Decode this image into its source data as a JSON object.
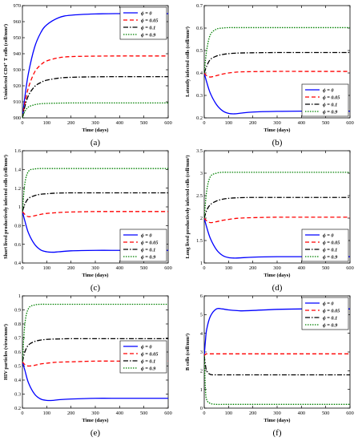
{
  "figure": {
    "style": {
      "series_colors": [
        "#0000ff",
        "#ff0000",
        "#000000",
        "#008000"
      ],
      "series_dash": [
        "solid",
        "dashed",
        "dashdot",
        "dotted"
      ]
    }
  },
  "chart_data": [
    {
      "panel": "(a)",
      "type": "line",
      "ylabel": "Uninfected CD4⁺ T cells (cell/mm³)",
      "xlabel": "Time (days)",
      "xlim": [
        0,
        600
      ],
      "ylim": [
        900,
        970
      ],
      "xticks": [
        0,
        100,
        200,
        300,
        400,
        500,
        600
      ],
      "yticks": [
        900,
        910,
        920,
        930,
        940,
        950,
        960,
        970
      ],
      "legend": "top-right",
      "x": [
        0,
        10,
        25,
        50,
        75,
        100,
        150,
        200,
        300,
        400,
        500,
        600
      ],
      "series": [
        {
          "name": "ϕ = 0",
          "values": [
            900,
            913,
            928,
            944,
            953,
            958,
            962.5,
            964,
            964.8,
            965,
            965,
            965
          ]
        },
        {
          "name": "ϕ = 0.05",
          "values": [
            900,
            909,
            919,
            928.5,
            933,
            935.5,
            937.5,
            938.2,
            938.5,
            938.6,
            938.6,
            938.6
          ]
        },
        {
          "name": "ϕ = 0.1",
          "values": [
            900,
            907,
            914,
            919.5,
            922,
            923.5,
            924.8,
            925.3,
            925.6,
            925.7,
            925.7,
            925.7
          ]
        },
        {
          "name": "ϕ = 0.9",
          "values": [
            900,
            904,
            906.8,
            908.2,
            908.8,
            909,
            909.2,
            909.3,
            909.3,
            909.3,
            909.3,
            909.3
          ]
        }
      ]
    },
    {
      "panel": "(b)",
      "type": "line",
      "ylabel": "Latently infected cells (cell/mm³)",
      "xlabel": "Time (days)",
      "xlim": [
        0,
        600
      ],
      "ylim": [
        0.2,
        0.7
      ],
      "xticks": [
        0,
        100,
        200,
        300,
        400,
        500,
        600
      ],
      "yticks": [
        0.2,
        0.3,
        0.4,
        0.5,
        0.6,
        0.7
      ],
      "legend": "bottom-right",
      "x": [
        0,
        10,
        25,
        50,
        75,
        100,
        125,
        150,
        200,
        300,
        400,
        500,
        600
      ],
      "series": [
        {
          "name": "ϕ = 0",
          "values": [
            0.4,
            0.36,
            0.31,
            0.26,
            0.232,
            0.22,
            0.218,
            0.221,
            0.226,
            0.229,
            0.23,
            0.23,
            0.23
          ]
        },
        {
          "name": "ϕ = 0.05",
          "values": [
            0.4,
            0.388,
            0.382,
            0.388,
            0.395,
            0.4,
            0.403,
            0.405,
            0.406,
            0.407,
            0.407,
            0.407,
            0.407
          ]
        },
        {
          "name": "ϕ = 0.1",
          "values": [
            0.4,
            0.43,
            0.46,
            0.475,
            0.482,
            0.486,
            0.488,
            0.489,
            0.49,
            0.491,
            0.491,
            0.491,
            0.491
          ]
        },
        {
          "name": "ϕ = 0.9",
          "values": [
            0.4,
            0.5,
            0.57,
            0.595,
            0.6,
            0.602,
            0.602,
            0.602,
            0.602,
            0.602,
            0.602,
            0.602,
            0.602
          ]
        }
      ]
    },
    {
      "panel": "(c)",
      "type": "line",
      "ylabel": "Short lived productively infected cells (cell/mm³)",
      "xlabel": "Time (days)",
      "xlim": [
        0,
        600
      ],
      "ylim": [
        0.4,
        1.6
      ],
      "xticks": [
        0,
        100,
        200,
        300,
        400,
        500,
        600
      ],
      "yticks": [
        0.4,
        0.6,
        0.8,
        1,
        1.2,
        1.4,
        1.6
      ],
      "legend": "bottom-right",
      "x": [
        0,
        10,
        25,
        50,
        75,
        100,
        125,
        150,
        200,
        300,
        400,
        500,
        600
      ],
      "series": [
        {
          "name": "ϕ = 0",
          "values": [
            0.95,
            0.85,
            0.72,
            0.6,
            0.54,
            0.52,
            0.515,
            0.52,
            0.53,
            0.535,
            0.535,
            0.535,
            0.535
          ]
        },
        {
          "name": "ϕ = 0.05",
          "values": [
            0.95,
            0.92,
            0.895,
            0.905,
            0.92,
            0.93,
            0.935,
            0.94,
            0.945,
            0.95,
            0.95,
            0.95,
            0.95
          ]
        },
        {
          "name": "ϕ = 0.1",
          "values": [
            0.95,
            1.03,
            1.09,
            1.12,
            1.135,
            1.14,
            1.145,
            1.148,
            1.15,
            1.15,
            1.15,
            1.15,
            1.15
          ]
        },
        {
          "name": "ϕ = 0.9",
          "values": [
            0.95,
            1.25,
            1.38,
            1.405,
            1.41,
            1.41,
            1.41,
            1.41,
            1.41,
            1.41,
            1.41,
            1.41,
            1.41
          ]
        }
      ]
    },
    {
      "panel": "(d)",
      "type": "line",
      "ylabel": "Long lived productively infected cells (cell/mm³)",
      "xlabel": "Time (days)",
      "xlim": [
        0,
        600
      ],
      "ylim": [
        1,
        3.5
      ],
      "xticks": [
        0,
        100,
        200,
        300,
        400,
        500,
        600
      ],
      "yticks": [
        1,
        1.5,
        2,
        2.5,
        3,
        3.5
      ],
      "legend": "bottom-right",
      "x": [
        0,
        10,
        25,
        50,
        75,
        100,
        125,
        150,
        200,
        300,
        400,
        500,
        600
      ],
      "series": [
        {
          "name": "ϕ = 0",
          "values": [
            2.0,
            1.8,
            1.55,
            1.3,
            1.17,
            1.12,
            1.11,
            1.115,
            1.13,
            1.14,
            1.14,
            1.14,
            1.14
          ]
        },
        {
          "name": "ϕ = 0.05",
          "values": [
            2.0,
            1.94,
            1.9,
            1.92,
            1.95,
            1.97,
            1.99,
            2.0,
            2.01,
            2.02,
            2.02,
            2.02,
            2.02
          ]
        },
        {
          "name": "ϕ = 0.1",
          "values": [
            2.0,
            2.17,
            2.3,
            2.38,
            2.42,
            2.44,
            2.45,
            2.455,
            2.46,
            2.46,
            2.46,
            2.46,
            2.46
          ]
        },
        {
          "name": "ϕ = 0.9",
          "values": [
            2.0,
            2.6,
            2.92,
            3.0,
            3.02,
            3.02,
            3.02,
            3.02,
            3.02,
            3.02,
            3.02,
            3.02,
            3.02
          ]
        }
      ]
    },
    {
      "panel": "(e)",
      "type": "line",
      "ylabel": "HIV particles (virus/mm³)",
      "xlabel": "Time (days)",
      "xlim": [
        0,
        600
      ],
      "ylim": [
        0.2,
        1
      ],
      "xticks": [
        0,
        100,
        200,
        300,
        400,
        500,
        600
      ],
      "yticks": [
        0.2,
        0.3,
        0.4,
        0.5,
        0.6,
        0.7,
        0.8,
        0.9,
        1
      ],
      "legend": "center-right",
      "x": [
        0,
        10,
        25,
        50,
        75,
        100,
        125,
        150,
        200,
        300,
        400,
        500,
        600
      ],
      "series": [
        {
          "name": "ϕ = 0",
          "values": [
            0.53,
            0.47,
            0.38,
            0.3,
            0.265,
            0.255,
            0.255,
            0.26,
            0.265,
            0.27,
            0.27,
            0.27,
            0.27
          ]
        },
        {
          "name": "ϕ = 0.05",
          "values": [
            0.53,
            0.51,
            0.5,
            0.505,
            0.515,
            0.52,
            0.525,
            0.528,
            0.53,
            0.535,
            0.535,
            0.535,
            0.535
          ]
        },
        {
          "name": "ϕ = 0.1",
          "values": [
            0.53,
            0.6,
            0.65,
            0.675,
            0.685,
            0.69,
            0.692,
            0.693,
            0.695,
            0.695,
            0.695,
            0.695,
            0.695
          ]
        },
        {
          "name": "ϕ = 0.9",
          "values": [
            0.53,
            0.8,
            0.91,
            0.935,
            0.94,
            0.94,
            0.94,
            0.94,
            0.94,
            0.94,
            0.94,
            0.94,
            0.94
          ]
        }
      ]
    },
    {
      "panel": "(f)",
      "type": "line",
      "ylabel": "B cells (cell/mm³)",
      "xlabel": "Time (days)",
      "xlim": [
        0,
        600
      ],
      "ylim": [
        0,
        6
      ],
      "xticks": [
        0,
        100,
        200,
        300,
        400,
        500,
        600
      ],
      "yticks": [
        0,
        1,
        2,
        3,
        4,
        5,
        6
      ],
      "legend": "top-right",
      "x": [
        0,
        5,
        10,
        25,
        50,
        75,
        100,
        150,
        200,
        300,
        400,
        500,
        600
      ],
      "series": [
        {
          "name": "ϕ = 0",
          "values": [
            2.8,
            3.6,
            4.2,
            4.9,
            5.3,
            5.3,
            5.25,
            5.2,
            5.22,
            5.28,
            5.3,
            5.3,
            5.3
          ]
        },
        {
          "name": "ϕ = 0.05",
          "values": [
            2.8,
            2.88,
            2.9,
            2.9,
            2.9,
            2.9,
            2.9,
            2.9,
            2.9,
            2.9,
            2.9,
            2.9,
            2.9
          ]
        },
        {
          "name": "ϕ = 0.1",
          "values": [
            2.8,
            2.3,
            2.0,
            1.8,
            1.78,
            1.78,
            1.78,
            1.78,
            1.78,
            1.78,
            1.78,
            1.78,
            1.78
          ]
        },
        {
          "name": "ϕ = 0.9",
          "values": [
            2.8,
            1.0,
            0.45,
            0.25,
            0.2,
            0.2,
            0.2,
            0.2,
            0.2,
            0.2,
            0.2,
            0.2,
            0.2
          ]
        }
      ]
    }
  ]
}
